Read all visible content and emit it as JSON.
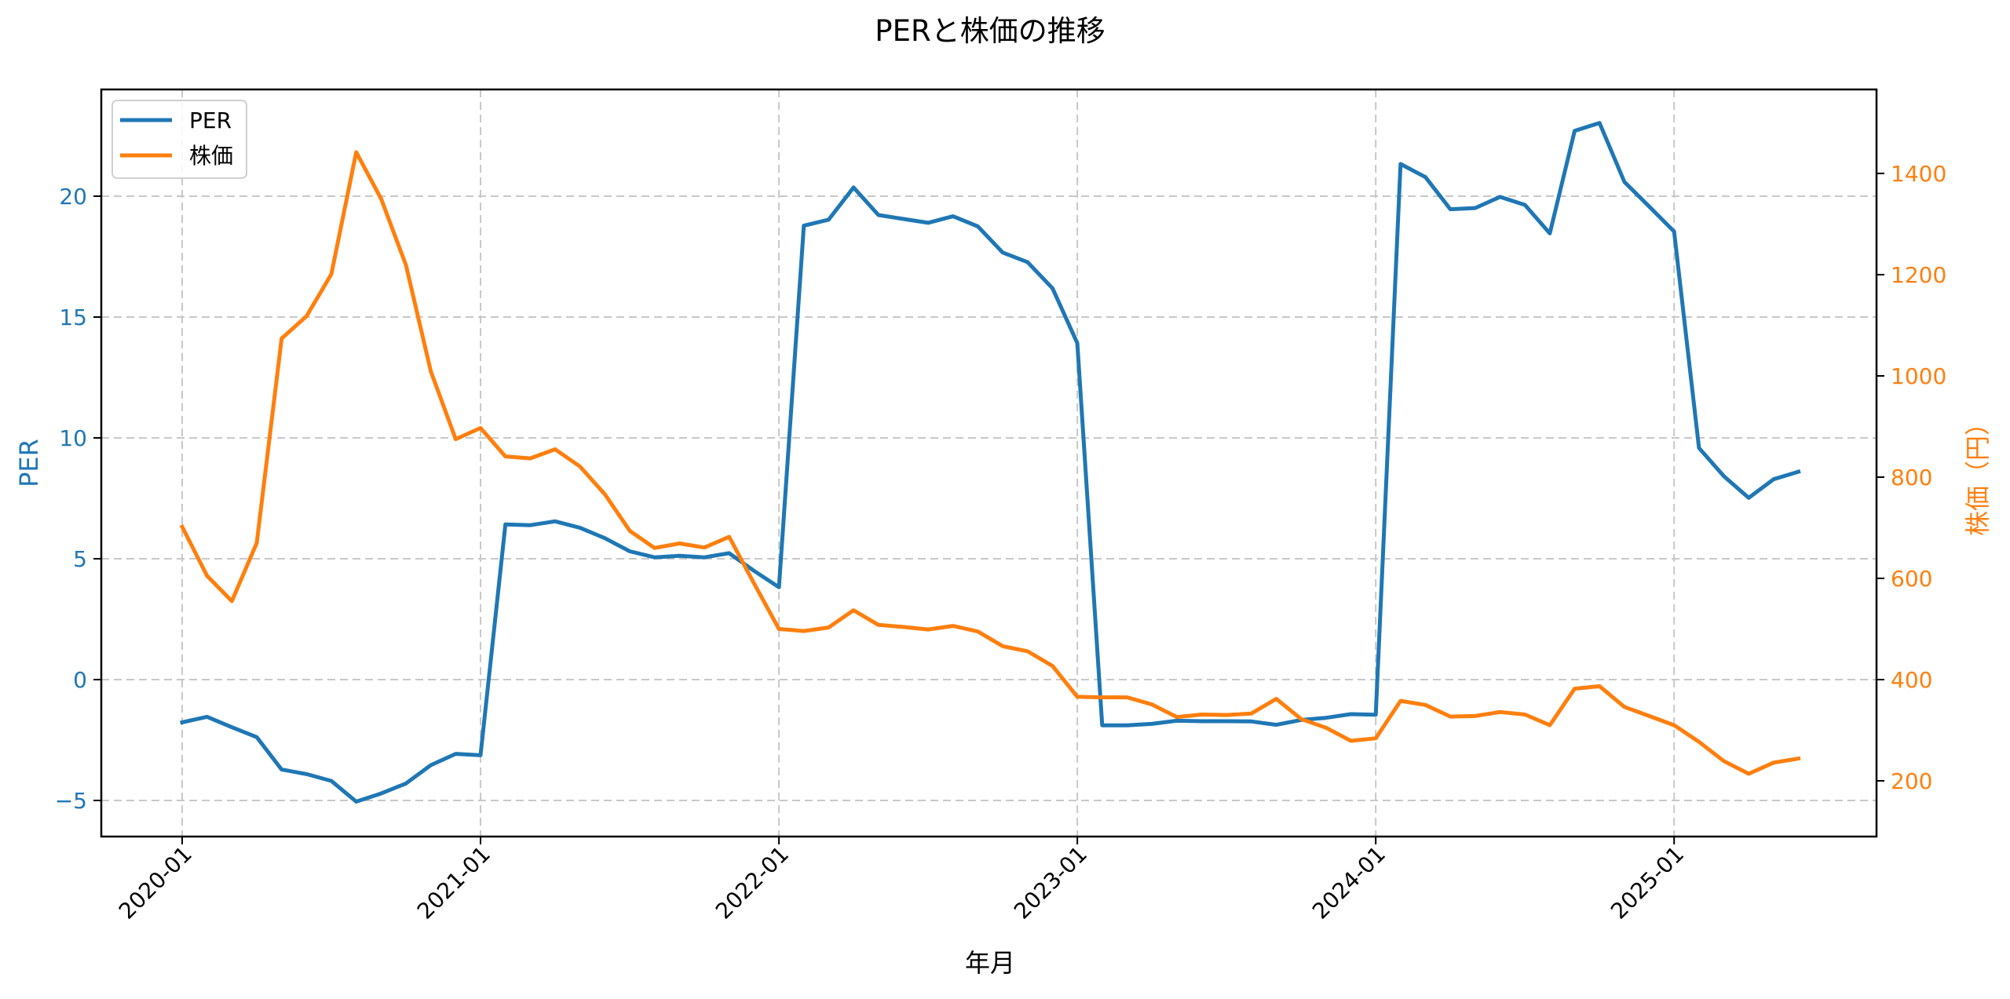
{
  "chart_data": {
    "type": "line",
    "title": "PERと株価の推移",
    "xlabel": "年月",
    "ylabel": "PER",
    "ylabel_right": "株価（円）",
    "x_tick_labels": [
      "2020-01",
      "2021-01",
      "2022-01",
      "2023-01",
      "2024-01",
      "2025-01"
    ],
    "y_ticks_left": [
      -5,
      0,
      5,
      10,
      15,
      20
    ],
    "y_ticks_right": [
      200,
      400,
      600,
      800,
      1000,
      1200,
      1400
    ],
    "ylim": [
      -6.5,
      24.4
    ],
    "ylim_right": [
      100,
      1565
    ],
    "grid": true,
    "legend_position": "upper left",
    "legend": [
      "PER",
      "株価"
    ],
    "colors": {
      "PER": "#1f77b4",
      "株価": "#ff7f0e"
    },
    "x": [
      "2020-01",
      "2020-02",
      "2020-03",
      "2020-04",
      "2020-05",
      "2020-06",
      "2020-07",
      "2020-08",
      "2020-09",
      "2020-10",
      "2020-11",
      "2020-12",
      "2021-01",
      "2021-02",
      "2021-03",
      "2021-04",
      "2021-05",
      "2021-06",
      "2021-07",
      "2021-08",
      "2021-09",
      "2021-10",
      "2021-11",
      "2021-12",
      "2022-01",
      "2022-02",
      "2022-03",
      "2022-04",
      "2022-05",
      "2022-06",
      "2022-07",
      "2022-08",
      "2022-09",
      "2022-10",
      "2022-11",
      "2022-12",
      "2023-01",
      "2023-02",
      "2023-03",
      "2023-04",
      "2023-05",
      "2023-06",
      "2023-07",
      "2023-08",
      "2023-09",
      "2023-10",
      "2023-11",
      "2023-12",
      "2024-01",
      "2024-02",
      "2024-03",
      "2024-04",
      "2024-05",
      "2024-06",
      "2024-07",
      "2024-08",
      "2024-09",
      "2024-10",
      "2024-11",
      "2024-12",
      "2025-01",
      "2025-02",
      "2025-03",
      "2025-04",
      "2025-05",
      "2025-06"
    ],
    "series": [
      {
        "name": "PER",
        "axis": "left",
        "values": [
          -1.77,
          -1.54,
          -1.97,
          -2.38,
          -3.72,
          -3.91,
          -4.19,
          -5.05,
          -4.71,
          -4.3,
          -3.54,
          -3.07,
          -3.13,
          6.42,
          6.39,
          6.55,
          6.28,
          5.85,
          5.31,
          5.06,
          5.12,
          5.06,
          5.23,
          4.5,
          3.82,
          18.78,
          19.03,
          20.36,
          19.22,
          19.06,
          18.9,
          19.17,
          18.75,
          17.67,
          17.27,
          16.19,
          13.92,
          -1.89,
          -1.89,
          -1.83,
          -1.7,
          -1.72,
          -1.72,
          -1.73,
          -1.87,
          -1.67,
          -1.58,
          -1.43,
          -1.45,
          21.33,
          20.79,
          19.46,
          19.51,
          19.97,
          19.64,
          18.46,
          22.7,
          23.03,
          20.59,
          19.57,
          18.54,
          9.58,
          8.42,
          7.52,
          8.29,
          8.6
        ]
      },
      {
        "name": "株価",
        "axis": "right",
        "values": [
          702,
          605,
          555,
          670,
          1074,
          1118,
          1201,
          1442,
          1350,
          1219,
          1009,
          875,
          897,
          841,
          837,
          855,
          821,
          766,
          694,
          660,
          669,
          661,
          682,
          590,
          500,
          496,
          503,
          537,
          508,
          504,
          499,
          506,
          495,
          466,
          456,
          427,
          366,
          365,
          365,
          351,
          326,
          331,
          330,
          333,
          362,
          322,
          305,
          279,
          284,
          358,
          350,
          327,
          328,
          336,
          331,
          310,
          382,
          387,
          346,
          328,
          310,
          277,
          239,
          214,
          236,
          244
        ]
      }
    ]
  }
}
